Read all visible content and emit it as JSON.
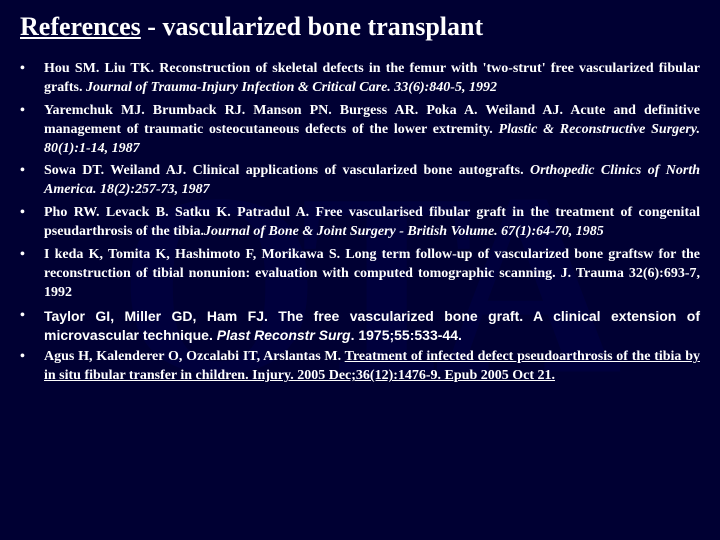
{
  "colors": {
    "background": "#000033",
    "text": "#ffffff",
    "watermark": "#000044"
  },
  "title": {
    "underlined": "References",
    "rest": " - vascularized bone transplant"
  },
  "watermark_text": "OTA",
  "references": [
    {
      "prefix": "Hou SM. Liu TK. Reconstruction of skeletal defects in the femur with 'two-strut' free vascularized fibular grafts. ",
      "journal": "Journal of Trauma-Injury Infection & Critical Care. 33(6):840-5, 1992",
      "suffix": "",
      "font": "serif"
    },
    {
      "prefix": "Yaremchuk MJ. Brumback RJ. Manson PN. Burgess AR. Poka A. Weiland AJ. Acute and definitive management of traumatic osteocutaneous defects of the lower extremity. ",
      "journal": "Plastic & Reconstructive Surgery. 80(1):1-14, 1987",
      "suffix": "",
      "font": "serif"
    },
    {
      "prefix": "Sowa DT. Weiland AJ. Clinical applications of vascularized bone autografts. ",
      "journal": "Orthopedic Clinics of North America. 18(2):257-73, 1987",
      "suffix": "",
      "font": "serif"
    },
    {
      "prefix": "Pho RW. Levack B. Satku K. Patradul A. Free vascularised fibular graft in the treatment of congenital pseudarthrosis of the tibia.",
      "journal": "Journal of Bone & Joint Surgery - British Volume. 67(1):64-70, 1985",
      "suffix": "",
      "font": "serif"
    },
    {
      "prefix": "I keda K, Tomita K, Hashimoto F, Morikawa S.  Long term follow-up of vascularized bone graftsw for the reconstruction of tibial nonunion:  evaluation with computed tomographic scanning.  J. Trauma  32(6):693-7, 1992",
      "journal": "",
      "suffix": "",
      "font": "serif"
    },
    {
      "prefix": "Taylor GI, Miller GD, Ham FJ. The free vascularized bone graft. A clinical extension of microvascular technique. ",
      "journal": "Plast Reconstr Surg",
      "suffix": ". 1975;55:533-44.",
      "font": "arial"
    },
    {
      "prefix": "Agus H, Kalenderer O, Ozcalabi IT, Arslantas M.  ",
      "journal": "",
      "suffix": "Treatment of infected defect pseudoarthrosis of the tibia by in situ fibular transfer in children.  Injury. 2005 Dec;36(12):1476-9. Epub 2005 Oct 21.",
      "suffix_underlined_leading_space": true,
      "font": "serif"
    }
  ]
}
